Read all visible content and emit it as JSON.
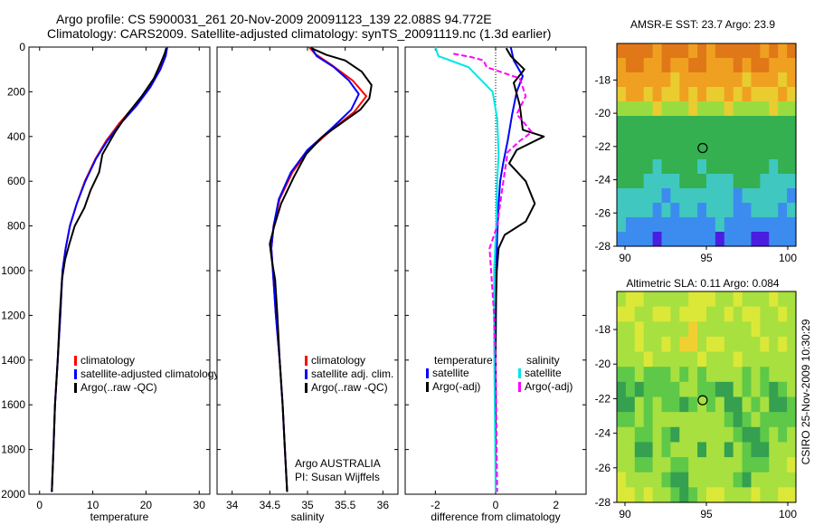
{
  "title": {
    "line1": "Argo profile: CS 5900031_261 20-Nov-2009 20091123_139 22.088S 94.772E",
    "line2": "Climatology: CARS2009. Satellite-adjusted climatology: synTS_20091119.nc (1.3d earlier)"
  },
  "side_label": "CSIRO 25-Nov-2009 10:30:29",
  "colors": {
    "climatology": "#ff0000",
    "satellite": "#0000ff",
    "argo": "#000000",
    "sat_salinity": "#00e5e5",
    "argo_salinity": "#ff00ff"
  },
  "chart_data": [
    {
      "id": "temperature",
      "type": "line",
      "xlabel": "temperature",
      "ylim": [
        0,
        2000
      ],
      "xlim": [
        -2,
        32
      ],
      "xticks": [
        0,
        10,
        20,
        30
      ],
      "yticks": [
        0,
        200,
        400,
        600,
        800,
        1000,
        1200,
        1400,
        1600,
        1800,
        2000
      ],
      "y_inverted": true,
      "legend": {
        "placement": "lower-right",
        "entries": [
          "climatology",
          "satellite-adjusted climatology",
          "Argo(..raw -QC)"
        ]
      },
      "series": [
        {
          "name": "climatology",
          "color": "#ff0000",
          "points": [
            [
              24,
              0
            ],
            [
              23.6,
              40
            ],
            [
              22.5,
              100
            ],
            [
              20.5,
              180
            ],
            [
              18,
              260
            ],
            [
              15,
              340
            ],
            [
              12.5,
              420
            ],
            [
              10.5,
              500
            ],
            [
              8.5,
              600
            ],
            [
              7,
              700
            ],
            [
              5.7,
              800
            ],
            [
              4.9,
              900
            ],
            [
              4.3,
              1000
            ],
            [
              3.9,
              1200
            ],
            [
              3.4,
              1400
            ],
            [
              2.9,
              1600
            ],
            [
              2.6,
              1800
            ],
            [
              2.3,
              1990
            ]
          ]
        },
        {
          "name": "satellite-adjusted climatology",
          "color": "#0000ff",
          "points": [
            [
              24,
              0
            ],
            [
              23.7,
              40
            ],
            [
              22.7,
              100
            ],
            [
              20.8,
              180
            ],
            [
              18.3,
              260
            ],
            [
              15.3,
              340
            ],
            [
              12.7,
              420
            ],
            [
              10.6,
              500
            ],
            [
              8.6,
              600
            ],
            [
              7,
              700
            ],
            [
              5.7,
              800
            ],
            [
              4.9,
              900
            ],
            [
              4.3,
              1000
            ],
            [
              3.9,
              1200
            ],
            [
              3.4,
              1400
            ],
            [
              2.9,
              1600
            ],
            [
              2.6,
              1800
            ],
            [
              2.3,
              1990
            ]
          ]
        },
        {
          "name": "Argo(..raw -QC)",
          "color": "#000000",
          "points": [
            [
              23.8,
              5
            ],
            [
              23.5,
              30
            ],
            [
              22.8,
              70
            ],
            [
              21.5,
              140
            ],
            [
              19.2,
              220
            ],
            [
              16.5,
              300
            ],
            [
              14.2,
              380
            ],
            [
              13,
              430
            ],
            [
              11.8,
              480
            ],
            [
              11.2,
              560
            ],
            [
              9.6,
              640
            ],
            [
              8.4,
              720
            ],
            [
              6.6,
              800
            ],
            [
              5.6,
              880
            ],
            [
              4.8,
              950
            ],
            [
              4.2,
              1040
            ],
            [
              3.8,
              1200
            ],
            [
              3.4,
              1400
            ],
            [
              2.9,
              1600
            ],
            [
              2.6,
              1800
            ],
            [
              2.3,
              1990
            ]
          ]
        }
      ]
    },
    {
      "id": "salinity",
      "type": "line",
      "xlabel": "salinity",
      "ylim": [
        0,
        2000
      ],
      "xlim": [
        33.8,
        36.2
      ],
      "xticks": [
        34,
        34.5,
        35,
        35.5,
        36
      ],
      "y_inverted": true,
      "legend": {
        "placement": "lower-right",
        "entries": [
          "climatology",
          "satellite adj. clim.",
          "Argo(..raw -QC)"
        ]
      },
      "annotation": [
        "Argo AUSTRALIA",
        "PI: Susan Wijffels"
      ],
      "series": [
        {
          "name": "climatology",
          "color": "#ff0000",
          "points": [
            [
              35.02,
              0
            ],
            [
              35.1,
              30
            ],
            [
              35.32,
              80
            ],
            [
              35.6,
              150
            ],
            [
              35.78,
              220
            ],
            [
              35.62,
              290
            ],
            [
              35.32,
              370
            ],
            [
              35.02,
              460
            ],
            [
              34.8,
              560
            ],
            [
              34.63,
              680
            ],
            [
              34.55,
              800
            ],
            [
              34.52,
              900
            ],
            [
              34.54,
              1000
            ],
            [
              34.58,
              1200
            ],
            [
              34.63,
              1400
            ],
            [
              34.67,
              1600
            ],
            [
              34.7,
              1800
            ],
            [
              34.73,
              1990
            ]
          ]
        },
        {
          "name": "satellite adj. clim.",
          "color": "#0000ff",
          "points": [
            [
              35.05,
              0
            ],
            [
              35.12,
              40
            ],
            [
              35.35,
              90
            ],
            [
              35.55,
              150
            ],
            [
              35.68,
              210
            ],
            [
              35.58,
              280
            ],
            [
              35.3,
              370
            ],
            [
              35.0,
              460
            ],
            [
              34.78,
              560
            ],
            [
              34.62,
              680
            ],
            [
              34.55,
              800
            ],
            [
              34.52,
              900
            ],
            [
              34.54,
              1000
            ],
            [
              34.58,
              1200
            ],
            [
              34.63,
              1400
            ],
            [
              34.67,
              1600
            ],
            [
              34.7,
              1800
            ],
            [
              34.73,
              1990
            ]
          ]
        },
        {
          "name": "Argo(..raw -QC)",
          "color": "#000000",
          "points": [
            [
              35.05,
              5
            ],
            [
              35.25,
              35
            ],
            [
              35.5,
              60
            ],
            [
              35.72,
              110
            ],
            [
              35.85,
              170
            ],
            [
              35.82,
              230
            ],
            [
              35.7,
              280
            ],
            [
              35.45,
              340
            ],
            [
              35.2,
              400
            ],
            [
              34.98,
              480
            ],
            [
              34.82,
              580
            ],
            [
              34.65,
              700
            ],
            [
              34.56,
              800
            ],
            [
              34.5,
              880
            ],
            [
              34.53,
              960
            ],
            [
              34.57,
              1040
            ],
            [
              34.6,
              1200
            ],
            [
              34.63,
              1400
            ],
            [
              34.67,
              1600
            ],
            [
              34.7,
              1800
            ],
            [
              34.73,
              1990
            ]
          ]
        }
      ]
    },
    {
      "id": "difference",
      "type": "line",
      "xlabel": "difference from climatology",
      "ylim": [
        0,
        2000
      ],
      "xlim": [
        -3,
        3
      ],
      "xticks": [
        -2,
        0,
        2
      ],
      "y_inverted": true,
      "legend": {
        "placement": "lower-right",
        "groups": [
          {
            "header": "temperature",
            "entries": [
              "satellite",
              "Argo(-adj)"
            ]
          },
          {
            "header": "salinity",
            "entries": [
              "satellite",
              "Argo(-adj)"
            ]
          }
        ]
      },
      "series": [
        {
          "name": "temperature satellite",
          "color": "#0000ff",
          "points": [
            [
              0.5,
              0
            ],
            [
              0.6,
              60
            ],
            [
              0.9,
              130
            ],
            [
              0.7,
              200
            ],
            [
              0.55,
              300
            ],
            [
              0.4,
              420
            ],
            [
              0.25,
              520
            ],
            [
              0.15,
              600
            ],
            [
              0.1,
              700
            ],
            [
              0.05,
              850
            ],
            [
              0.02,
              1000
            ],
            [
              0,
              1400
            ],
            [
              0,
              1990
            ]
          ]
        },
        {
          "name": "temperature Argo(-adj)",
          "color": "#000000",
          "points": [
            [
              0.35,
              5
            ],
            [
              0.5,
              40
            ],
            [
              0.95,
              100
            ],
            [
              0.6,
              160
            ],
            [
              0.8,
              260
            ],
            [
              0.9,
              370
            ],
            [
              1.6,
              400
            ],
            [
              0.7,
              460
            ],
            [
              0.45,
              520
            ],
            [
              1.0,
              600
            ],
            [
              1.3,
              700
            ],
            [
              1.0,
              780
            ],
            [
              0.3,
              840
            ],
            [
              0.1,
              900
            ],
            [
              0.04,
              1000
            ],
            [
              0,
              1200
            ],
            [
              0,
              1990
            ]
          ]
        },
        {
          "name": "salinity satellite",
          "color": "#00e5e5",
          "points": [
            [
              -2,
              0
            ],
            [
              -1.9,
              40
            ],
            [
              -0.9,
              90
            ],
            [
              -0.1,
              200
            ],
            [
              0.05,
              320
            ],
            [
              0.1,
              480
            ],
            [
              0.05,
              600
            ],
            [
              0.02,
              800
            ],
            [
              -0.05,
              1000
            ],
            [
              -0.05,
              1300
            ],
            [
              0,
              1990
            ]
          ]
        },
        {
          "name": "salinity Argo(-adj)",
          "color": "#ff00ff",
          "points": [
            [
              -1.4,
              30
            ],
            [
              -0.8,
              45
            ],
            [
              -0.4,
              60
            ],
            [
              -0.3,
              90
            ],
            [
              0.8,
              140
            ],
            [
              1.0,
              220
            ],
            [
              0.7,
              300
            ],
            [
              1.2,
              380
            ],
            [
              0.8,
              420
            ],
            [
              0.4,
              470
            ],
            [
              0.3,
              560
            ],
            [
              0.15,
              700
            ],
            [
              0.05,
              800
            ],
            [
              -0.2,
              900
            ],
            [
              -0.15,
              1000
            ],
            [
              -0.05,
              1200
            ],
            [
              0,
              1400
            ],
            [
              0.05,
              1990
            ]
          ]
        }
      ]
    },
    {
      "id": "sst",
      "type": "heatmap",
      "title": "AMSR-E SST: 23.7 Argo: 23.9",
      "xlim": [
        89.5,
        100.5
      ],
      "ylim": [
        -28,
        -15.8
      ],
      "xticks": [
        90,
        95,
        100
      ],
      "yticks": [
        -18,
        -20,
        -22,
        -24,
        -26,
        -28
      ],
      "marker": {
        "lon": 94.77,
        "lat": -22.09
      },
      "colors": [
        "#4a1ee0",
        "#3c8cf0",
        "#40c8c0",
        "#34b050",
        "#9adc40",
        "#e8cc30",
        "#f0a020",
        "#e07818"
      ],
      "rows": [
        "77776777676777776767",
        "67766766776667677666",
        "66666656666666566656",
        "56656556565565655565",
        "44445444544454444544",
        "33333333333333333333",
        "33333333333333333333",
        "33333333333333333333",
        "33332333323333333233",
        "33322223332223332222",
        "22222122222221222221",
        "22221212212221122212",
        "21111111111211111111",
        "11110111111011100111"
      ]
    },
    {
      "id": "sla",
      "type": "heatmap",
      "title": "Altimetric SLA: 0.11 Argo: 0.084",
      "xlim": [
        89.5,
        100.5
      ],
      "ylim": [
        -28,
        -15.8
      ],
      "xticks": [
        90,
        95,
        100
      ],
      "yticks": [
        -18,
        -20,
        -22,
        -24,
        -26,
        -28
      ],
      "marker": {
        "lon": 94.77,
        "lat": -22.09
      },
      "colors": [
        "#34a050",
        "#5ec848",
        "#a8e040",
        "#dce838",
        "#f0d030",
        "#f0a020"
      ],
      "rows": [
        "23322222333223222322",
        "33223323332232332232",
        "22322222422222232222",
        "22322324423322223232",
        "22232222232223222222",
        "11211121212222121222",
        "01011112211002121012",
        "00212110121200212001",
        "11212222222210121111",
        "22112102222221001212",
        "22002122202202100222",
        "22112211222222111223",
        "32222100222221022222",
        "33232210123322232233"
      ]
    }
  ]
}
